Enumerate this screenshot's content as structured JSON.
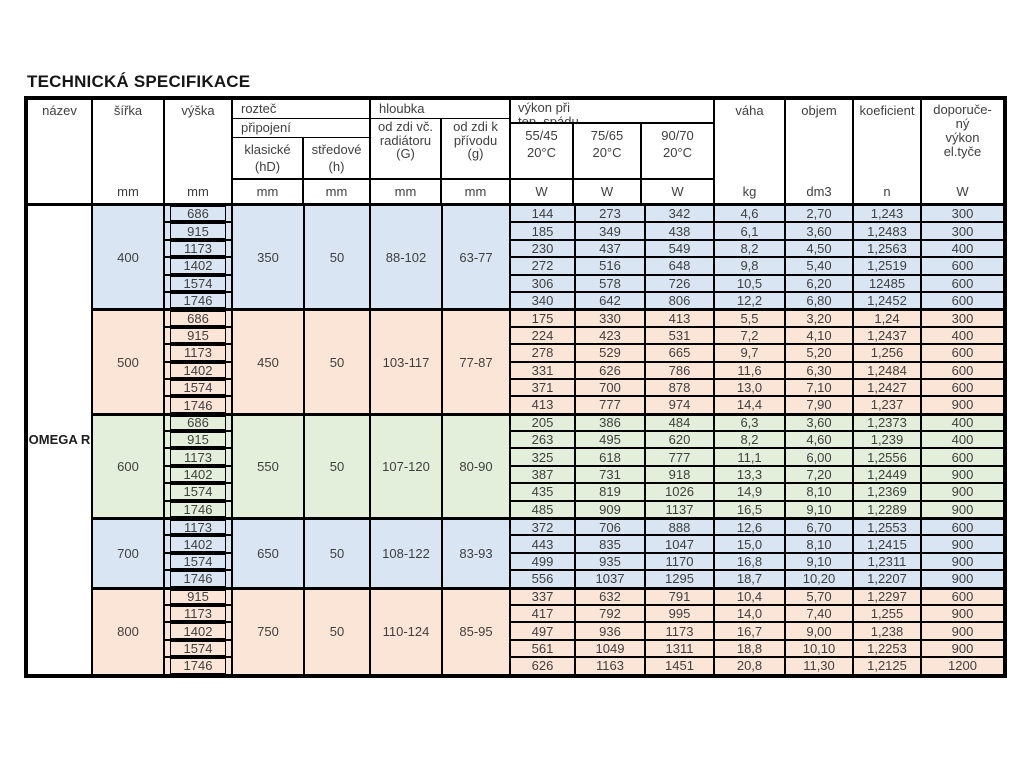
{
  "title": "TECHNICKÁ SPECIFIKACE",
  "table": {
    "name": "OMEGA R",
    "colors": {
      "blue": "#d9e5f2",
      "peach": "#fbe5d7",
      "green": "#e3efda"
    },
    "header": {
      "nazev": "název",
      "sirka": "šířka",
      "vyska": "výška",
      "roztec": "rozteč",
      "pripojeni": "připojení",
      "klasicke_l1": "klasické",
      "klasicke_l2": "(hD)",
      "stredove_l1": "středové",
      "stredove_l2": "(h)",
      "hloubka": "hloubka",
      "od_zdi_vc_l1": "od zdi vč.",
      "od_zdi_vc_l2": "radiátoru",
      "od_zdi_vc_l3": "(G)",
      "od_zdi_k_l1": "od zdi k",
      "od_zdi_k_l2": "přívodu",
      "od_zdi_k_l3": "(g)",
      "vykon_l1": "výkon při",
      "vykon_l2": "tep. spádu",
      "t5545": "55/45",
      "t7565": "75/65",
      "t9070": "90/70",
      "deg": "20°C",
      "vaha": "váha",
      "objem": "objem",
      "koeficient": "koeficient",
      "doporucene_l1": "doporuče-",
      "doporucene_l2": "ný",
      "doporucene_l3": "výkon",
      "doporucene_l4": "el.tyče",
      "unit_mm": "mm",
      "unit_w": "W",
      "unit_kg": "kg",
      "unit_dm3": "dm3",
      "unit_n": "n"
    },
    "groups": [
      {
        "sirka": "400",
        "color": "blue",
        "klasicke": "350",
        "stredove": "50",
        "depth_G": "88-102",
        "depth_g": "63-77",
        "rows": [
          [
            "686",
            "144",
            "273",
            "342",
            "4,6",
            "2,70",
            "1,243",
            "300"
          ],
          [
            "915",
            "185",
            "349",
            "438",
            "6,1",
            "3,60",
            "1,2483",
            "300"
          ],
          [
            "1173",
            "230",
            "437",
            "549",
            "8,2",
            "4,50",
            "1,2563",
            "400"
          ],
          [
            "1402",
            "272",
            "516",
            "648",
            "9,8",
            "5,40",
            "1,2519",
            "600"
          ],
          [
            "1574",
            "306",
            "578",
            "726",
            "10,5",
            "6,20",
            "12485",
            "600"
          ],
          [
            "1746",
            "340",
            "642",
            "806",
            "12,2",
            "6,80",
            "1,2452",
            "600"
          ]
        ]
      },
      {
        "sirka": "500",
        "color": "peach",
        "klasicke": "450",
        "stredove": "50",
        "depth_G": "103-117",
        "depth_g": "77-87",
        "rows": [
          [
            "686",
            "175",
            "330",
            "413",
            "5,5",
            "3,20",
            "1,24",
            "300"
          ],
          [
            "915",
            "224",
            "423",
            "531",
            "7,2",
            "4,10",
            "1,2437",
            "400"
          ],
          [
            "1173",
            "278",
            "529",
            "665",
            "9,7",
            "5,20",
            "1,256",
            "600"
          ],
          [
            "1402",
            "331",
            "626",
            "786",
            "11,6",
            "6,30",
            "1,2484",
            "600"
          ],
          [
            "1574",
            "371",
            "700",
            "878",
            "13,0",
            "7,10",
            "1,2427",
            "600"
          ],
          [
            "1746",
            "413",
            "777",
            "974",
            "14,4",
            "7,90",
            "1,237",
            "900"
          ]
        ]
      },
      {
        "sirka": "600",
        "color": "green",
        "klasicke": "550",
        "stredove": "50",
        "depth_G": "107-120",
        "depth_g": "80-90",
        "rows": [
          [
            "686",
            "205",
            "386",
            "484",
            "6,3",
            "3,60",
            "1,2373",
            "400"
          ],
          [
            "915",
            "263",
            "495",
            "620",
            "8,2",
            "4,60",
            "1,239",
            "400"
          ],
          [
            "1173",
            "325",
            "618",
            "777",
            "11,1",
            "6,00",
            "1,2556",
            "600"
          ],
          [
            "1402",
            "387",
            "731",
            "918",
            "13,3",
            "7,20",
            "1,2449",
            "900"
          ],
          [
            "1574",
            "435",
            "819",
            "1026",
            "14,9",
            "8,10",
            "1,2369",
            "900"
          ],
          [
            "1746",
            "485",
            "909",
            "1137",
            "16,5",
            "9,10",
            "1,2289",
            "900"
          ]
        ]
      },
      {
        "sirka": "700",
        "color": "blue",
        "klasicke": "650",
        "stredove": "50",
        "depth_G": "108-122",
        "depth_g": "83-93",
        "rows": [
          [
            "1173",
            "372",
            "706",
            "888",
            "12,6",
            "6,70",
            "1,2553",
            "600"
          ],
          [
            "1402",
            "443",
            "835",
            "1047",
            "15,0",
            "8,10",
            "1,2415",
            "900"
          ],
          [
            "1574",
            "499",
            "935",
            "1170",
            "16,8",
            "9,10",
            "1,2311",
            "900"
          ],
          [
            "1746",
            "556",
            "1037",
            "1295",
            "18,7",
            "10,20",
            "1,2207",
            "900"
          ]
        ]
      },
      {
        "sirka": "800",
        "color": "peach",
        "klasicke": "750",
        "stredove": "50",
        "depth_G": "110-124",
        "depth_g": "85-95",
        "rows": [
          [
            "915",
            "337",
            "632",
            "791",
            "10,4",
            "5,70",
            "1,2297",
            "600"
          ],
          [
            "1173",
            "417",
            "792",
            "995",
            "14,0",
            "7,40",
            "1,255",
            "900"
          ],
          [
            "1402",
            "497",
            "936",
            "1173",
            "16,7",
            "9,00",
            "1,238",
            "900"
          ],
          [
            "1574",
            "561",
            "1049",
            "1311",
            "18,8",
            "10,10",
            "1,2253",
            "900"
          ],
          [
            "1746",
            "626",
            "1163",
            "1451",
            "20,8",
            "11,30",
            "1,2125",
            "1200"
          ]
        ]
      }
    ]
  }
}
